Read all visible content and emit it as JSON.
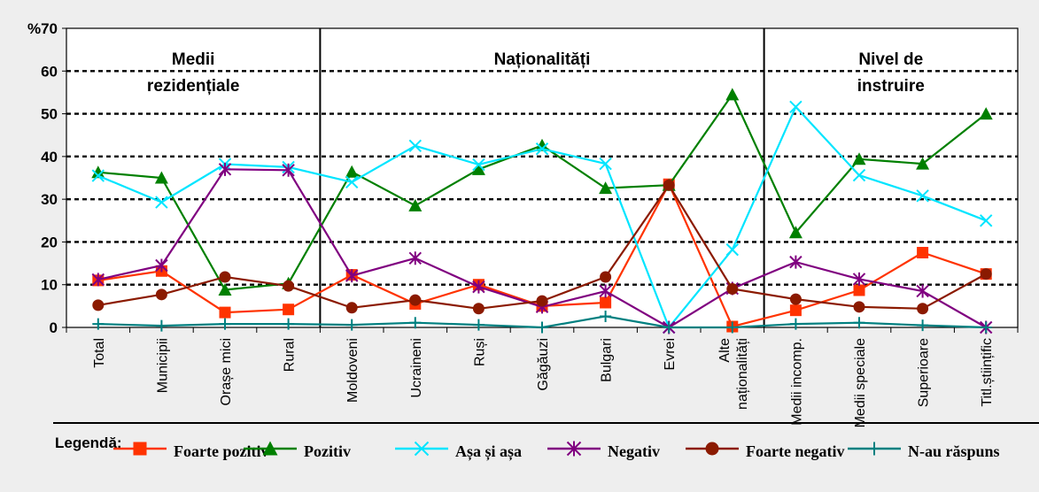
{
  "chart_data": {
    "type": "line",
    "y_unit_label": "%",
    "y_top_tick": "70",
    "ylim": [
      0,
      70
    ],
    "yticks": [
      0,
      10,
      20,
      30,
      40,
      50,
      60
    ],
    "grid": "horizontal dotted",
    "categories": [
      "Total",
      "Municipii",
      "Orașe mici",
      "Rural",
      "Moldoveni",
      "Ucraineni",
      "Ruși",
      "Găgăuzi",
      "Bulgari",
      "Evrei",
      "Alte naționalități",
      "Medii incomp.",
      "Medii speciale",
      "Superioare",
      "Titl.științific"
    ],
    "category_lines": [
      [
        "Total"
      ],
      [
        "Municipii"
      ],
      [
        "Orașe mici"
      ],
      [
        "Rural"
      ],
      [
        "Moldoveni"
      ],
      [
        "Ucraineni"
      ],
      [
        "Ruși"
      ],
      [
        "Găgăuzi"
      ],
      [
        "Bulgari"
      ],
      [
        "Evrei"
      ],
      [
        "Alte",
        "naționalități"
      ],
      [
        "Medii incomp."
      ],
      [
        "Medii speciale"
      ],
      [
        "Superioare"
      ],
      [
        "Titl.științific"
      ]
    ],
    "sections": [
      {
        "title_lines": [
          "Medii",
          "rezidențiale"
        ],
        "from": 0,
        "to": 3
      },
      {
        "title_lines": [
          "Naționalități"
        ],
        "from": 4,
        "to": 10
      },
      {
        "title_lines": [
          "Nivel de",
          "instruire"
        ],
        "from": 11,
        "to": 14
      }
    ],
    "series": [
      {
        "name": "Foarte pozitiv",
        "color": "#ff3300",
        "marker": "square",
        "values": [
          11.0,
          13.2,
          3.5,
          4.2,
          12.3,
          5.5,
          10.0,
          5.0,
          5.8,
          33.5,
          0.2,
          4.0,
          8.7,
          17.5,
          12.5
        ]
      },
      {
        "name": "Pozitiv",
        "color": "#008000",
        "marker": "triangle",
        "values": [
          36.3,
          35.0,
          8.8,
          10.3,
          36.4,
          28.5,
          37.0,
          42.6,
          32.6,
          33.3,
          54.5,
          22.2,
          39.4,
          38.3,
          50.0
        ]
      },
      {
        "name": "Așa și așa",
        "color": "#00e5ff",
        "marker": "x",
        "values": [
          35.5,
          29.3,
          38.2,
          37.5,
          34.0,
          42.5,
          38.1,
          41.8,
          38.3,
          0.0,
          18.2,
          51.6,
          35.6,
          30.8,
          25.0
        ]
      },
      {
        "name": "Negativ",
        "color": "#800080",
        "marker": "star",
        "values": [
          11.2,
          14.5,
          37.0,
          36.8,
          12.1,
          16.2,
          9.5,
          4.8,
          8.5,
          0.0,
          9.1,
          15.3,
          11.3,
          8.5,
          0.0
        ]
      },
      {
        "name": "Foarte negativ",
        "color": "#8b1a00",
        "marker": "circle",
        "values": [
          5.2,
          7.7,
          11.8,
          9.7,
          4.6,
          6.4,
          4.4,
          6.2,
          11.8,
          33.3,
          9.0,
          6.6,
          4.8,
          4.4,
          12.5
        ]
      },
      {
        "name": "N-au răspuns",
        "color": "#008080",
        "marker": "plus",
        "values": [
          0.8,
          0.4,
          0.8,
          0.8,
          0.6,
          1.1,
          0.6,
          0.0,
          2.6,
          0.0,
          0.0,
          0.8,
          1.1,
          0.5,
          0.0
        ]
      }
    ],
    "legend_title": "Legendă:",
    "legend_position": "bottom"
  }
}
